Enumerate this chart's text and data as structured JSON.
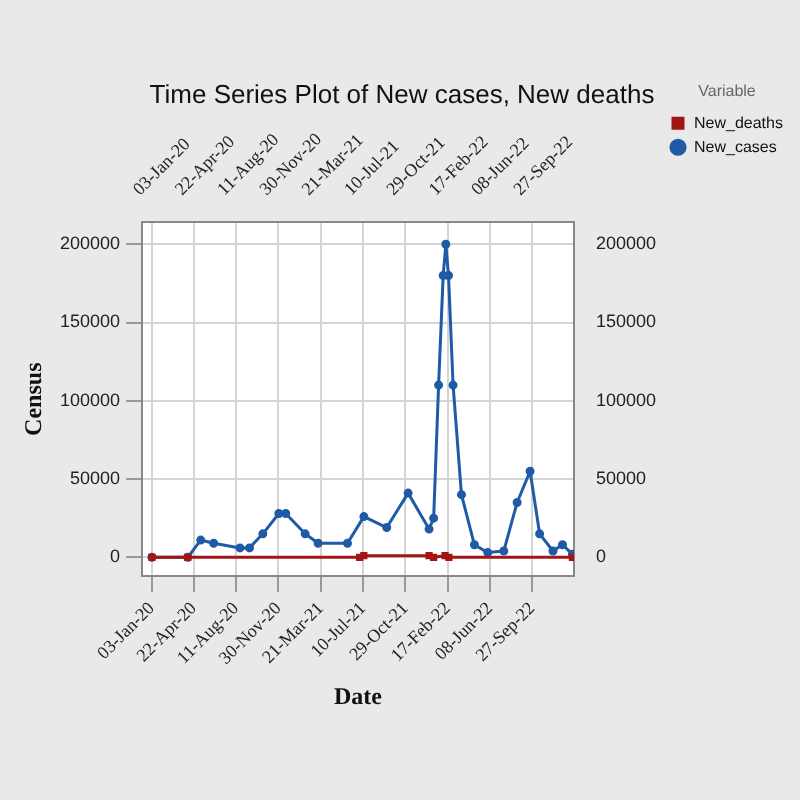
{
  "chart_data": {
    "type": "line",
    "title": "Time Series Plot of New cases, New deaths",
    "xlabel": "Date",
    "ylabel": "Census",
    "legend_title": "Variable",
    "legend": "right",
    "grid": true,
    "xlim": [
      "2019-12-08",
      "2023-01-14"
    ],
    "xticks": [
      {
        "value": "2020-01-03",
        "label": "03-Jan-20"
      },
      {
        "value": "2020-04-22",
        "label": "22-Apr-20"
      },
      {
        "value": "2020-08-11",
        "label": "11-Aug-20"
      },
      {
        "value": "2020-11-30",
        "label": "30-Nov-20"
      },
      {
        "value": "2021-03-21",
        "label": "21-Mar-21"
      },
      {
        "value": "2021-07-10",
        "label": "10-Jul-21"
      },
      {
        "value": "2021-10-29",
        "label": "29-Oct-21"
      },
      {
        "value": "2022-02-17",
        "label": "17-Feb-22"
      },
      {
        "value": "2022-06-08",
        "label": "08-Jun-22"
      },
      {
        "value": "2022-09-27",
        "label": "27-Sep-22"
      }
    ],
    "x2lim": [
      "2019-12-08",
      "2023-01-14"
    ],
    "x2ticks": [
      {
        "value": "2020-01-03",
        "label": "03-Jan-20"
      },
      {
        "value": "2020-04-22",
        "label": "22-Apr-20"
      },
      {
        "value": "2020-08-11",
        "label": "11-Aug-20"
      },
      {
        "value": "2020-11-30",
        "label": "30-Nov-20"
      },
      {
        "value": "2021-03-21",
        "label": "21-Mar-21"
      },
      {
        "value": "2021-07-10",
        "label": "10-Jul-21"
      },
      {
        "value": "2021-10-29",
        "label": "29-Oct-21"
      },
      {
        "value": "2022-02-17",
        "label": "17-Feb-22"
      },
      {
        "value": "2022-06-08",
        "label": "08-Jun-22"
      },
      {
        "value": "2022-09-27",
        "label": "27-Sep-22"
      }
    ],
    "ylim": [
      -12000,
      214000
    ],
    "yticks": [
      0,
      50000,
      100000,
      150000,
      200000
    ],
    "y2lim": [
      -12000,
      214000
    ],
    "y2ticks": [
      0,
      50000,
      100000,
      150000,
      200000
    ],
    "series": [
      {
        "name": "New_cases",
        "color": "#1f5aa6",
        "marker": "circle",
        "x": [
          "2020-01-03",
          "2020-04-06",
          "2020-05-10",
          "2020-06-13",
          "2020-08-21",
          "2020-09-15",
          "2020-10-20",
          "2020-12-01",
          "2020-12-19",
          "2021-02-08",
          "2021-03-14",
          "2021-05-30",
          "2021-07-12",
          "2021-09-10",
          "2021-11-05",
          "2021-12-30",
          "2022-01-11",
          "2022-01-24",
          "2022-02-05",
          "2022-02-12",
          "2022-02-19",
          "2022-03-03",
          "2022-03-25",
          "2022-04-28",
          "2022-06-02",
          "2022-07-14",
          "2022-08-18",
          "2022-09-21",
          "2022-10-16",
          "2022-11-20",
          "2022-12-15",
          "2023-01-10"
        ],
        "values": [
          0,
          0,
          11000,
          9000,
          6000,
          6000,
          15000,
          28000,
          28000,
          15000,
          9000,
          9000,
          26000,
          19000,
          41000,
          18000,
          25000,
          110000,
          180000,
          200000,
          180000,
          110000,
          40000,
          8000,
          3000,
          4000,
          35000,
          55000,
          15000,
          4000,
          8000,
          2000
        ]
      },
      {
        "name": "New_deaths",
        "color": "#a31515",
        "marker": "square",
        "x": [
          "2020-01-03",
          "2020-04-06",
          "2021-07-01",
          "2021-07-12",
          "2021-12-30",
          "2022-01-11",
          "2022-02-10",
          "2022-02-20",
          "2023-01-10"
        ],
        "values": [
          0,
          0,
          0,
          1000,
          1000,
          0,
          1000,
          0,
          0
        ]
      }
    ]
  }
}
